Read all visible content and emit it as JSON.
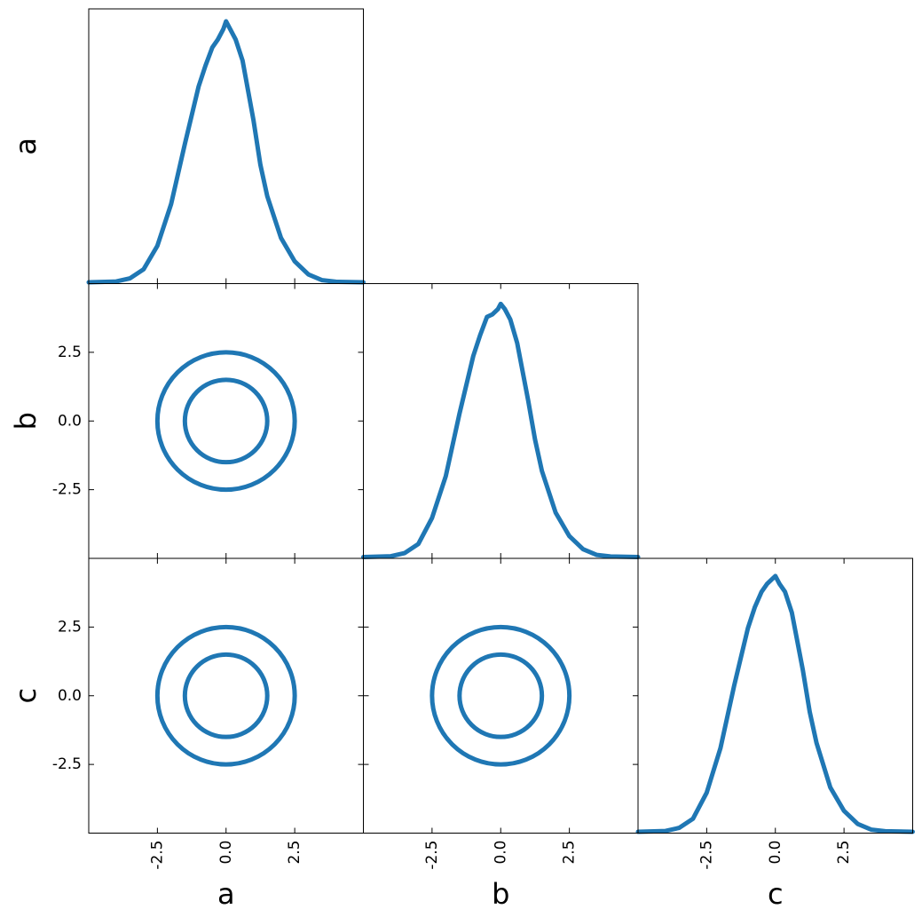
{
  "chart_data": {
    "type": "corner",
    "parameters": [
      "a",
      "b",
      "c"
    ],
    "axis_range": [
      -5,
      5
    ],
    "tick_values": [
      -2.5,
      0.0,
      2.5
    ],
    "tick_labels": [
      "-2.5",
      "0.0",
      "2.5"
    ],
    "line_color": "#1f77b4",
    "grid": false,
    "diagonal_1d": [
      {
        "param": "a",
        "x": [
          -5,
          -4,
          -3.5,
          -3,
          -2.5,
          -2,
          -1.5,
          -1,
          -0.75,
          -0.5,
          -0.3,
          -0.1,
          0,
          0.15,
          0.35,
          0.6,
          1,
          1.25,
          1.5,
          2,
          2.5,
          3,
          3.5,
          4,
          5
        ],
        "density": [
          0,
          0.003,
          0.015,
          0.05,
          0.14,
          0.3,
          0.53,
          0.75,
          0.83,
          0.9,
          0.93,
          0.97,
          1.0,
          0.97,
          0.93,
          0.85,
          0.62,
          0.45,
          0.33,
          0.17,
          0.08,
          0.03,
          0.008,
          0.002,
          0
        ]
      },
      {
        "param": "b",
        "x": [
          -5,
          -4,
          -3.5,
          -3,
          -2.5,
          -2,
          -1.5,
          -1,
          -0.75,
          -0.5,
          -0.3,
          -0.1,
          0,
          0.15,
          0.35,
          0.6,
          1,
          1.25,
          1.5,
          2,
          2.5,
          3,
          3.5,
          4,
          5
        ],
        "density": [
          0,
          0.003,
          0.015,
          0.05,
          0.15,
          0.31,
          0.55,
          0.77,
          0.85,
          0.92,
          0.93,
          0.95,
          0.97,
          0.95,
          0.91,
          0.82,
          0.6,
          0.45,
          0.33,
          0.17,
          0.08,
          0.03,
          0.008,
          0.002,
          0
        ]
      },
      {
        "param": "c",
        "x": [
          -5,
          -4,
          -3.5,
          -3,
          -2.5,
          -2,
          -1.5,
          -1,
          -0.75,
          -0.5,
          -0.3,
          -0.1,
          0,
          0.15,
          0.35,
          0.6,
          1,
          1.25,
          1.5,
          2,
          2.5,
          3,
          3.5,
          4,
          5
        ],
        "density": [
          0,
          0.003,
          0.015,
          0.05,
          0.15,
          0.32,
          0.56,
          0.78,
          0.86,
          0.92,
          0.95,
          0.97,
          0.98,
          0.95,
          0.92,
          0.84,
          0.62,
          0.46,
          0.34,
          0.17,
          0.08,
          0.03,
          0.008,
          0.002,
          0
        ]
      }
    ],
    "contours_2d": [
      {
        "x": "a",
        "y": "b",
        "center": [
          0,
          0
        ],
        "radii": [
          1.5,
          2.5
        ]
      },
      {
        "x": "a",
        "y": "c",
        "center": [
          0,
          0
        ],
        "radii": [
          1.5,
          2.5
        ]
      },
      {
        "x": "b",
        "y": "c",
        "center": [
          0,
          0
        ],
        "radii": [
          1.5,
          2.5
        ]
      }
    ]
  }
}
